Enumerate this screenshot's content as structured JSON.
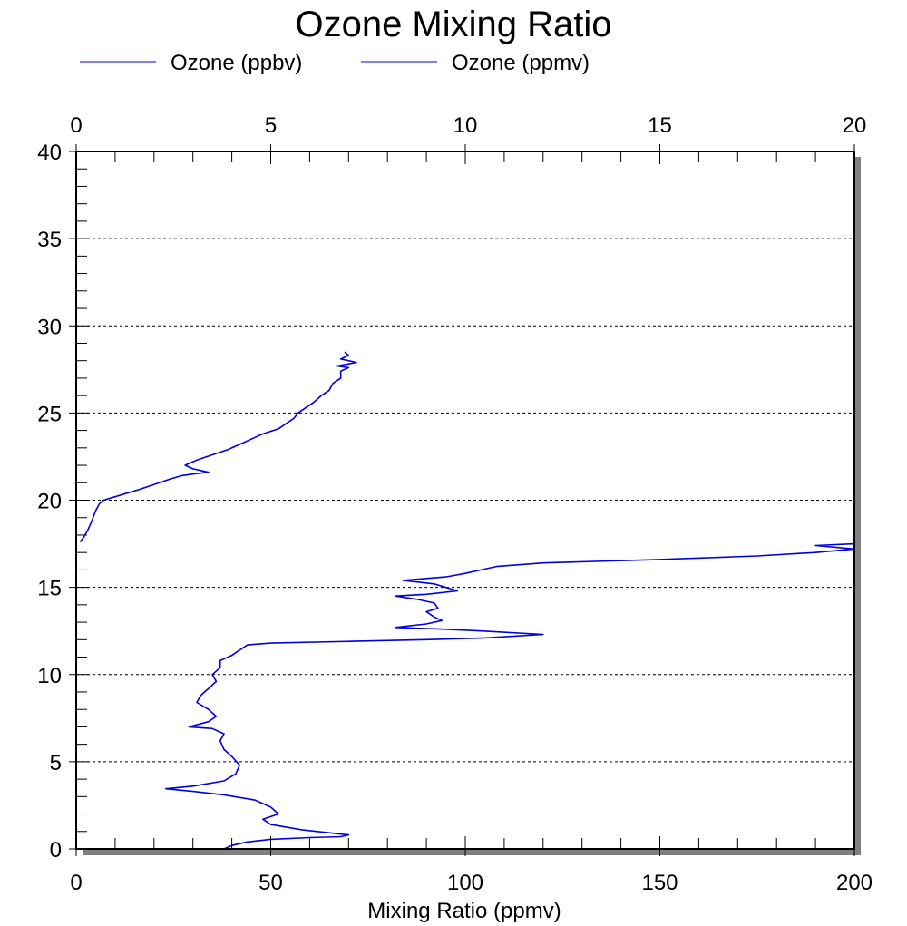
{
  "chart_data": {
    "type": "line",
    "title": "Ozone Mixing Ratio",
    "xlabel": "Mixing Ratio (ppmv)",
    "ylabel": "",
    "legend_placement": "top-left",
    "grid": {
      "horizontal_dashed": true,
      "vertical": false
    },
    "bottom_axis": {
      "lim": [
        0,
        200
      ],
      "ticks": [
        0,
        50,
        100,
        150,
        200
      ],
      "tick_labels": [
        "0",
        "50",
        "100",
        "150",
        "200"
      ]
    },
    "top_axis": {
      "lim": [
        0,
        20
      ],
      "ticks": [
        0,
        5,
        10,
        15,
        20
      ],
      "tick_labels": [
        "0",
        "5",
        "10",
        "15",
        "20"
      ]
    },
    "left_axis": {
      "lim": [
        0,
        40
      ],
      "ticks": [
        0,
        5,
        10,
        15,
        20,
        25,
        30,
        35,
        40
      ],
      "tick_labels": [
        "0",
        "5",
        "10",
        "15",
        "20",
        "25",
        "30",
        "35",
        "40"
      ]
    },
    "series": [
      {
        "name": "Ozone (ppbv)",
        "axis": "top",
        "color": "#0000dd",
        "points": [
          [
            0.1,
            17.6
          ],
          [
            0.2,
            17.9
          ],
          [
            0.3,
            18.3
          ],
          [
            0.4,
            18.8
          ],
          [
            0.5,
            19.4
          ],
          [
            0.6,
            19.8
          ],
          [
            0.7,
            20.0
          ],
          [
            1.0,
            20.2
          ],
          [
            1.3,
            20.4
          ],
          [
            1.6,
            20.6
          ],
          [
            2.0,
            20.9
          ],
          [
            2.4,
            21.2
          ],
          [
            2.7,
            21.4
          ],
          [
            3.0,
            21.5
          ],
          [
            3.4,
            21.6
          ],
          [
            3.0,
            21.8
          ],
          [
            2.8,
            22.0
          ],
          [
            3.1,
            22.3
          ],
          [
            3.5,
            22.6
          ],
          [
            3.9,
            22.9
          ],
          [
            4.2,
            23.2
          ],
          [
            4.5,
            23.5
          ],
          [
            4.8,
            23.8
          ],
          [
            5.2,
            24.1
          ],
          [
            5.4,
            24.4
          ],
          [
            5.6,
            24.7
          ],
          [
            5.7,
            25.0
          ],
          [
            5.9,
            25.3
          ],
          [
            6.1,
            25.6
          ],
          [
            6.3,
            26.0
          ],
          [
            6.5,
            26.3
          ],
          [
            6.6,
            26.7
          ],
          [
            6.8,
            27.0
          ],
          [
            6.8,
            27.4
          ],
          [
            7.0,
            27.6
          ],
          [
            6.7,
            27.7
          ],
          [
            7.2,
            27.9
          ],
          [
            6.8,
            28.1
          ],
          [
            7.0,
            28.3
          ],
          [
            6.9,
            28.5
          ]
        ]
      },
      {
        "name": "Ozone (ppmv)",
        "axis": "bottom",
        "color": "#0000dd",
        "points": [
          [
            38,
            0.0
          ],
          [
            40,
            0.2
          ],
          [
            44,
            0.4
          ],
          [
            50,
            0.55
          ],
          [
            60,
            0.65
          ],
          [
            68,
            0.7
          ],
          [
            70,
            0.8
          ],
          [
            66,
            0.9
          ],
          [
            58,
            1.1
          ],
          [
            50,
            1.4
          ],
          [
            48,
            1.7
          ],
          [
            52,
            2.0
          ],
          [
            50,
            2.4
          ],
          [
            46,
            2.8
          ],
          [
            38,
            3.1
          ],
          [
            30,
            3.3
          ],
          [
            23,
            3.45
          ],
          [
            30,
            3.6
          ],
          [
            38,
            3.9
          ],
          [
            41,
            4.3
          ],
          [
            42,
            4.8
          ],
          [
            40,
            5.3
          ],
          [
            38,
            5.7
          ],
          [
            37,
            6.2
          ],
          [
            38,
            6.6
          ],
          [
            35,
            6.9
          ],
          [
            29,
            7.0
          ],
          [
            34,
            7.3
          ],
          [
            36,
            7.6
          ],
          [
            34,
            8.0
          ],
          [
            31,
            8.4
          ],
          [
            32,
            8.8
          ],
          [
            34,
            9.2
          ],
          [
            36,
            9.6
          ],
          [
            35,
            10.0
          ],
          [
            37,
            10.4
          ],
          [
            37,
            10.8
          ],
          [
            40,
            11.1
          ],
          [
            42,
            11.4
          ],
          [
            44,
            11.7
          ],
          [
            50,
            11.8
          ],
          [
            70,
            11.9
          ],
          [
            90,
            12.0
          ],
          [
            105,
            12.1
          ],
          [
            120,
            12.3
          ],
          [
            104,
            12.5
          ],
          [
            95,
            12.6
          ],
          [
            82,
            12.7
          ],
          [
            90,
            12.9
          ],
          [
            94,
            13.1
          ],
          [
            92,
            13.3
          ],
          [
            90,
            13.6
          ],
          [
            93,
            13.8
          ],
          [
            92,
            14.1
          ],
          [
            88,
            14.3
          ],
          [
            82,
            14.5
          ],
          [
            90,
            14.6
          ],
          [
            98,
            14.8
          ],
          [
            95,
            15.0
          ],
          [
            92,
            15.2
          ],
          [
            84,
            15.4
          ],
          [
            95,
            15.6
          ],
          [
            100,
            15.8
          ],
          [
            104,
            16.0
          ],
          [
            108,
            16.2
          ],
          [
            120,
            16.4
          ],
          [
            150,
            16.6
          ],
          [
            175,
            16.8
          ],
          [
            190,
            17.0
          ],
          [
            200,
            17.2
          ],
          [
            190,
            17.4
          ],
          [
            200,
            17.5
          ]
        ]
      }
    ]
  }
}
